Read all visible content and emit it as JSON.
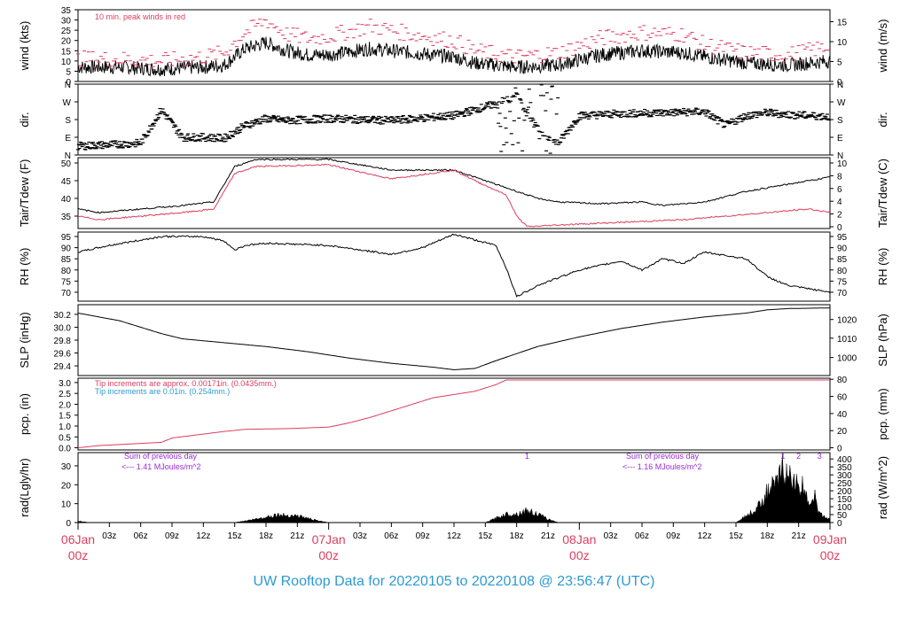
{
  "title": "UW Rooftop Data for 20220105  to  20220108 @ 23:56:47  (UTC)",
  "colors": {
    "accent": "#dc3d5f",
    "blue": "#2b9ad6",
    "purple": "#9b2bd8",
    "black": "#000000"
  },
  "chart_data": [
    {
      "type": "line",
      "ylabel_left": "wind (kts)",
      "ylabel_right": "wind (m/s)",
      "ylim": [
        0,
        35
      ],
      "yticks_left": [
        0,
        5,
        10,
        15,
        20,
        25,
        30,
        35
      ],
      "yticks_right": [
        0,
        5,
        10,
        15
      ],
      "annotation": "10 min. peak winds in red",
      "series": [
        {
          "key": "wind",
          "color": "#000000",
          "x": [
            0,
            4,
            8,
            12,
            14,
            16,
            18,
            20,
            22,
            24,
            28,
            32,
            36,
            38,
            42,
            46,
            50,
            54,
            58,
            60,
            64,
            68,
            72
          ],
          "y": [
            7,
            7,
            6,
            7,
            8,
            16,
            19,
            15,
            13,
            13,
            16,
            14,
            12,
            9,
            7,
            8,
            13,
            15,
            14,
            12,
            9,
            8,
            10
          ]
        },
        {
          "key": "gust",
          "color": "#dc3d5f",
          "x": [
            0,
            4,
            8,
            12,
            14,
            16,
            18,
            20,
            22,
            24,
            28,
            32,
            36,
            38,
            42,
            46,
            50,
            54,
            58,
            60,
            64,
            68,
            72
          ],
          "y": [
            11,
            11,
            10,
            12,
            14,
            24,
            30,
            23,
            21,
            22,
            27,
            23,
            20,
            15,
            12,
            14,
            21,
            24,
            23,
            18,
            14,
            13,
            17
          ]
        }
      ]
    },
    {
      "type": "scatter",
      "ylabel_left": "dir.",
      "ylabel_right": "dir.",
      "yticks_left": [
        "N",
        "E",
        "S",
        "W",
        "N"
      ],
      "yticks_right": [
        "N",
        "E",
        "S",
        "W",
        "N"
      ],
      "ylim": [
        0,
        360
      ],
      "series": [
        {
          "key": "dir",
          "color": "#000000",
          "x": [
            0,
            4,
            6,
            8,
            10,
            12,
            14,
            16,
            18,
            20,
            24,
            30,
            36,
            40,
            42,
            44,
            46,
            48,
            50,
            52,
            56,
            60,
            62,
            64,
            66,
            68,
            72
          ],
          "y": [
            45,
            55,
            60,
            230,
            90,
            90,
            85,
            150,
            185,
            175,
            185,
            175,
            200,
            260,
            300,
            130,
            60,
            200,
            205,
            210,
            215,
            220,
            150,
            200,
            215,
            205,
            195
          ]
        }
      ]
    },
    {
      "type": "line",
      "ylabel_left": "Tair/Tdew (F)",
      "ylabel_right": "Tair/Tdew (C)",
      "ylim": [
        31.5,
        51.5
      ],
      "yticks_left": [
        35,
        40,
        45,
        50
      ],
      "yticks_right": [
        0,
        2,
        4,
        6,
        8,
        10
      ],
      "series": [
        {
          "key": "Tair",
          "color": "#000000",
          "x": [
            0,
            2,
            6,
            10,
            13,
            14,
            15,
            17,
            24,
            30,
            36,
            38,
            42,
            44,
            46,
            50,
            54,
            56,
            60,
            64,
            68,
            72
          ],
          "y": [
            37,
            36,
            37,
            38,
            39,
            44,
            49,
            51,
            51,
            48,
            48,
            46,
            42,
            40,
            39,
            38.5,
            39,
            38,
            39,
            42,
            44,
            46
          ]
        },
        {
          "key": "Tdew",
          "color": "#dc3d5f",
          "x": [
            0,
            2,
            6,
            10,
            13,
            14,
            15,
            17,
            24,
            30,
            36,
            38,
            41,
            42,
            43,
            46,
            50,
            54,
            58,
            62,
            66,
            70,
            72
          ],
          "y": [
            35,
            34,
            35,
            36,
            37,
            42,
            47,
            49,
            49.5,
            45.5,
            48,
            45,
            41,
            35,
            32,
            32.5,
            33,
            33.5,
            34,
            35,
            36,
            37,
            36
          ]
        }
      ]
    },
    {
      "type": "line",
      "ylabel_left": "RH (%)",
      "ylabel_right": "RH (%)",
      "ylim": [
        66,
        97
      ],
      "yticks_left": [
        70,
        75,
        80,
        85,
        90,
        95
      ],
      "yticks_right": [
        70,
        75,
        80,
        85,
        90,
        95
      ],
      "series": [
        {
          "key": "RH",
          "color": "#000000",
          "x": [
            0,
            3,
            8,
            12,
            14,
            15,
            16,
            18,
            24,
            30,
            33,
            36,
            40,
            41,
            42,
            44,
            48,
            52,
            54,
            56,
            58,
            60,
            64,
            66,
            68,
            72
          ],
          "y": [
            88,
            91,
            95,
            95,
            93,
            89,
            91,
            92,
            91,
            87,
            90,
            96,
            91,
            81,
            68,
            73,
            80,
            84,
            80,
            85,
            83,
            88,
            85,
            77,
            73,
            70
          ]
        }
      ]
    },
    {
      "type": "line",
      "ylabel_left": "SLP (inHg)",
      "ylabel_right": "SLP (hPa)",
      "ylim": [
        29.25,
        30.35
      ],
      "yticks_left": [
        29.4,
        29.6,
        29.8,
        30.0,
        30.2
      ],
      "yticks_right": [
        1000,
        1010,
        1020
      ],
      "hpa_ticks_inhg": [
        29.53,
        29.83,
        30.12
      ],
      "series": [
        {
          "key": "SLP",
          "color": "#000000",
          "x": [
            0,
            4,
            8,
            10,
            14,
            18,
            22,
            26,
            30,
            34,
            36,
            38,
            40,
            44,
            48,
            52,
            56,
            60,
            64,
            66,
            68,
            72
          ],
          "y": [
            30.22,
            30.1,
            29.9,
            29.82,
            29.76,
            29.7,
            29.62,
            29.52,
            29.44,
            29.38,
            29.34,
            29.36,
            29.48,
            29.7,
            29.85,
            29.98,
            30.08,
            30.16,
            30.22,
            30.27,
            30.29,
            30.3
          ]
        }
      ]
    },
    {
      "type": "line",
      "ylabel_left": "pcp. (in)",
      "ylabel_right": "pcp. (mm)",
      "ylim": [
        -0.1,
        3.2
      ],
      "yticks_left": [
        0.0,
        0.5,
        1.0,
        1.5,
        2.0,
        2.5,
        3.0
      ],
      "yticks_right": [
        0,
        20,
        40,
        60,
        80
      ],
      "annotations": [
        {
          "text": "Tip increments are approx. 0.00171in. (0.0435mm.)",
          "color": "#dc3d5f"
        },
        {
          "text": "Tip increments are 0.01in. (0.254mm.)",
          "color": "#2b9ad6"
        }
      ],
      "series": [
        {
          "key": "pcp",
          "color": "#dc3d5f",
          "x": [
            0,
            2,
            8,
            9,
            14,
            16,
            20,
            24,
            26,
            28,
            30,
            32,
            34,
            36,
            38,
            40,
            41,
            72
          ],
          "y": [
            0.0,
            0.1,
            0.25,
            0.45,
            0.75,
            0.85,
            0.88,
            0.95,
            1.15,
            1.4,
            1.7,
            2.0,
            2.3,
            2.45,
            2.6,
            2.9,
            3.12,
            3.12
          ]
        }
      ]
    },
    {
      "type": "area",
      "ylabel_left": "rad(Lgly/hr)",
      "ylabel_right": "rad (W/m^2)",
      "ylim": [
        0,
        37
      ],
      "yticks_left": [
        0,
        10,
        20,
        30
      ],
      "yticks_right": [
        0,
        50,
        100,
        150,
        200,
        250,
        300,
        350,
        400
      ],
      "annotations": [
        {
          "text": "Sum of previous day",
          "color": "#9b2bd8"
        },
        {
          "text": "<--- 1.41 MJoules/m^2",
          "color": "#9b2bd8"
        },
        {
          "text": "Sum of previous day",
          "color": "#9b2bd8"
        },
        {
          "text": "<--- 1.16 MJoules/m^2",
          "color": "#9b2bd8"
        }
      ],
      "markers": [
        {
          "text": "1",
          "x": 43
        },
        {
          "text": "1",
          "x": 67.5
        },
        {
          "text": "2",
          "x": 69
        },
        {
          "text": "3",
          "x": 71
        }
      ],
      "series": [
        {
          "key": "rad",
          "color": "#000000",
          "x": [
            0,
            1,
            15,
            17,
            19,
            21,
            23,
            24,
            39,
            41,
            42,
            43,
            44,
            45,
            46,
            63,
            65,
            66,
            67,
            67.5,
            68,
            68.5,
            69,
            69.5,
            70,
            70.5,
            71,
            72
          ],
          "y": [
            1,
            0,
            0,
            2,
            4.5,
            4,
            1,
            0,
            0,
            5,
            5,
            7,
            5,
            2,
            0,
            0,
            8,
            18,
            23,
            33,
            25,
            28,
            18,
            22,
            12,
            16,
            5,
            2
          ]
        }
      ]
    }
  ],
  "x_axis": {
    "hour_ticks": [
      "03z",
      "06z",
      "09z",
      "12z",
      "15z",
      "18z",
      "21z",
      "03z",
      "06z",
      "09z",
      "12z",
      "15z",
      "18z",
      "21z",
      "03z",
      "06z",
      "09z",
      "12z",
      "15z",
      "18z",
      "21z"
    ],
    "day_ticks": [
      {
        "top": "06Jan",
        "bottom": "00z"
      },
      {
        "top": "07Jan",
        "bottom": "00z"
      },
      {
        "top": "08Jan",
        "bottom": "00z"
      },
      {
        "top": "09Jan",
        "bottom": "00z"
      }
    ]
  }
}
